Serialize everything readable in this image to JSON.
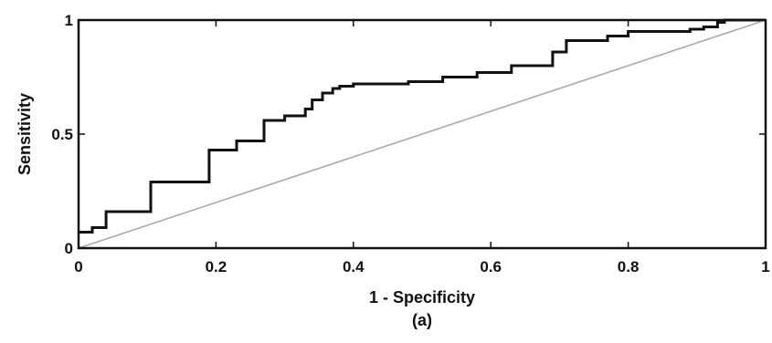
{
  "chart_data": {
    "type": "line",
    "title": "",
    "xlabel": "1 - Specificity",
    "ylabel": "Sensitivity",
    "caption": "(a)",
    "xlim": [
      0,
      1
    ],
    "ylim": [
      0,
      1
    ],
    "xticks": [
      0,
      0.2,
      0.4,
      0.6,
      0.8,
      1
    ],
    "xtick_labels": [
      "0",
      "0.2",
      "0.4",
      "0.6",
      "0.8",
      "1"
    ],
    "yticks": [
      0,
      0.5,
      1
    ],
    "ytick_labels": [
      "0",
      "0.5",
      "1"
    ],
    "grid": false,
    "legend": "none",
    "series": [
      {
        "style": "step",
        "color": "#111111",
        "x": [
          0,
          0.02,
          0.02,
          0.04,
          0.04,
          0.105,
          0.105,
          0.19,
          0.19,
          0.23,
          0.23,
          0.27,
          0.27,
          0.3,
          0.3,
          0.33,
          0.33,
          0.34,
          0.34,
          0.355,
          0.355,
          0.37,
          0.37,
          0.38,
          0.38,
          0.4,
          0.4,
          0.48,
          0.48,
          0.53,
          0.53,
          0.58,
          0.58,
          0.63,
          0.63,
          0.69,
          0.69,
          0.71,
          0.71,
          0.77,
          0.77,
          0.8,
          0.8,
          0.89,
          0.89,
          0.91,
          0.91,
          0.93,
          0.93,
          0.94,
          0.94,
          1.0
        ],
        "y": [
          0.07,
          0.07,
          0.09,
          0.09,
          0.16,
          0.16,
          0.29,
          0.29,
          0.43,
          0.43,
          0.47,
          0.47,
          0.56,
          0.56,
          0.58,
          0.58,
          0.61,
          0.61,
          0.65,
          0.65,
          0.68,
          0.68,
          0.7,
          0.7,
          0.71,
          0.71,
          0.72,
          0.72,
          0.73,
          0.73,
          0.75,
          0.75,
          0.77,
          0.77,
          0.8,
          0.8,
          0.86,
          0.86,
          0.91,
          0.91,
          0.93,
          0.93,
          0.95,
          0.95,
          0.96,
          0.96,
          0.97,
          0.97,
          0.99,
          0.99,
          1.0,
          1.0
        ]
      },
      {
        "style": "line",
        "color": "#aaaaaa",
        "x": [
          0,
          1
        ],
        "y": [
          0,
          1
        ]
      }
    ]
  }
}
